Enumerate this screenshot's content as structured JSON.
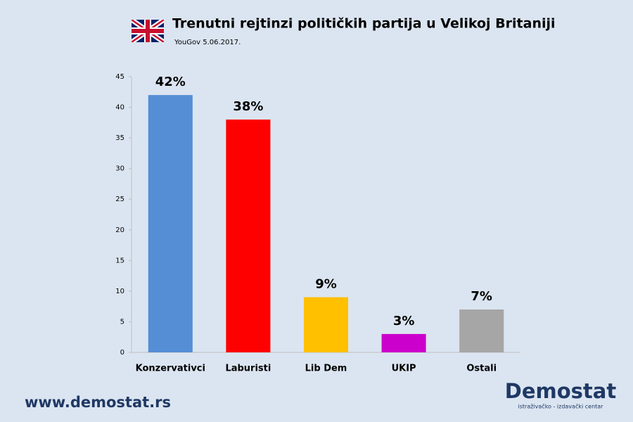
{
  "chart_data": {
    "type": "bar",
    "title": "Trenutni rejtinzi političkih partija u Velikoj Britaniji",
    "subtitle": "YouGov 5.06.2017.",
    "categories": [
      "Konzervativci",
      "Laburisti",
      "Lib Dem",
      "UKIP",
      "Ostali"
    ],
    "values": [
      42,
      38,
      9,
      3,
      7
    ],
    "value_labels": [
      "42%",
      "38%",
      "9%",
      "3%",
      "7%"
    ],
    "colors": [
      "#558ed5",
      "#ff0000",
      "#ffc000",
      "#cc00cc",
      "#a6a6a6"
    ],
    "ylim": [
      0,
      45
    ],
    "yticks": [
      0,
      5,
      10,
      15,
      20,
      25,
      30,
      35,
      40,
      45
    ],
    "grid": false
  },
  "footer": {
    "url": "www.demostat.rs",
    "logo": "Demostat",
    "tagline": "istraživačko - izdavački centar"
  }
}
